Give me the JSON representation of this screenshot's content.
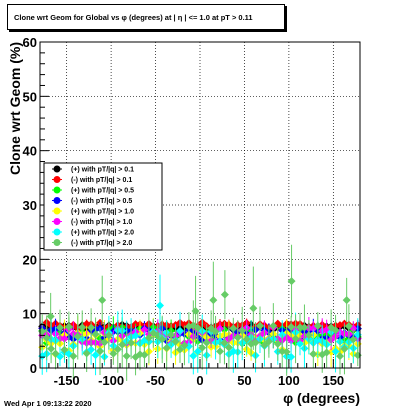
{
  "chart_data": {
    "type": "scatter",
    "title": "Clone wrt Geom for Global vs φ (degrees) at | η | <= 1.0 at pT > 0.11",
    "xlabel": "φ (degrees)",
    "ylabel": "Clone wrt Geom (%)",
    "xlim": [
      -180,
      180
    ],
    "ylim": [
      0,
      60
    ],
    "x_ticks": [
      -150,
      -100,
      -50,
      0,
      50,
      100,
      150
    ],
    "y_ticks": [
      0,
      10,
      20,
      30,
      40,
      50,
      60
    ],
    "grid": true,
    "legend_position": "middle-left",
    "series": [
      {
        "name": "(+) with pT/|q| > 0.1",
        "color": "#000000",
        "level": 7.5,
        "spread": 0.5
      },
      {
        "name": "(-) with pT/|q| > 0.1",
        "color": "#ff0000",
        "level": 7.8,
        "spread": 0.6
      },
      {
        "name": "(+) with pT/|q| > 0.5",
        "color": "#00ff00",
        "level": 6.0,
        "spread": 1.5
      },
      {
        "name": "(-) with pT/|q| > 0.5",
        "color": "#0000ff",
        "level": 6.2,
        "spread": 1.2
      },
      {
        "name": "(+) with pT/|q| > 1.0",
        "color": "#ffff00",
        "level": 4.5,
        "spread": 2.0
      },
      {
        "name": "(-) with pT/|q| > 1.0",
        "color": "#ff00ff",
        "level": 6.0,
        "spread": 1.5
      },
      {
        "name": "(+) with pT/|q| > 2.0",
        "color": "#00ffff",
        "level": 4.5,
        "spread": 2.5
      },
      {
        "name": "(-) with pT/|q| > 2.0",
        "color": "#66cc66",
        "level": 5.0,
        "spread": 3.0
      }
    ],
    "outliers": [
      {
        "x": -168,
        "y": 9.5,
        "color": "#66cc66"
      },
      {
        "x": -110,
        "y": 12.5,
        "color": "#66cc66"
      },
      {
        "x": -45,
        "y": 11.5,
        "color": "#00ffff"
      },
      {
        "x": 15,
        "y": 12.5,
        "color": "#66cc66"
      },
      {
        "x": 28,
        "y": 13.5,
        "color": "#66cc66"
      },
      {
        "x": 103,
        "y": 16.0,
        "color": "#66cc66"
      },
      {
        "x": 165,
        "y": 12.5,
        "color": "#66cc66"
      },
      {
        "x": -5,
        "y": 10.5,
        "color": "#66cc66"
      },
      {
        "x": 60,
        "y": 11.0,
        "color": "#66cc66"
      }
    ]
  },
  "footer": {
    "timestamp": "Wed Apr  1 09:13:22 2020"
  }
}
